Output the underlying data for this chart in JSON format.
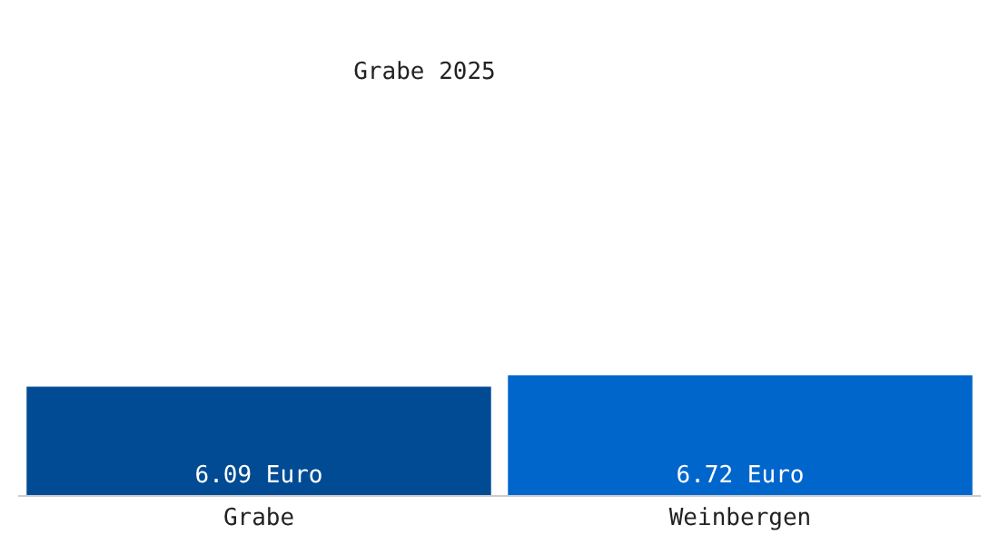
{
  "chart_data": {
    "type": "bar",
    "title": "Grabe 2025",
    "categories": [
      "Grabe",
      "Weinbergen"
    ],
    "values": [
      6.09,
      6.72
    ],
    "colors": [
      "#004b93",
      "#0066cc"
    ],
    "value_labels": [
      "6.09 Euro",
      "6.72 Euro"
    ],
    "grid": false
  }
}
